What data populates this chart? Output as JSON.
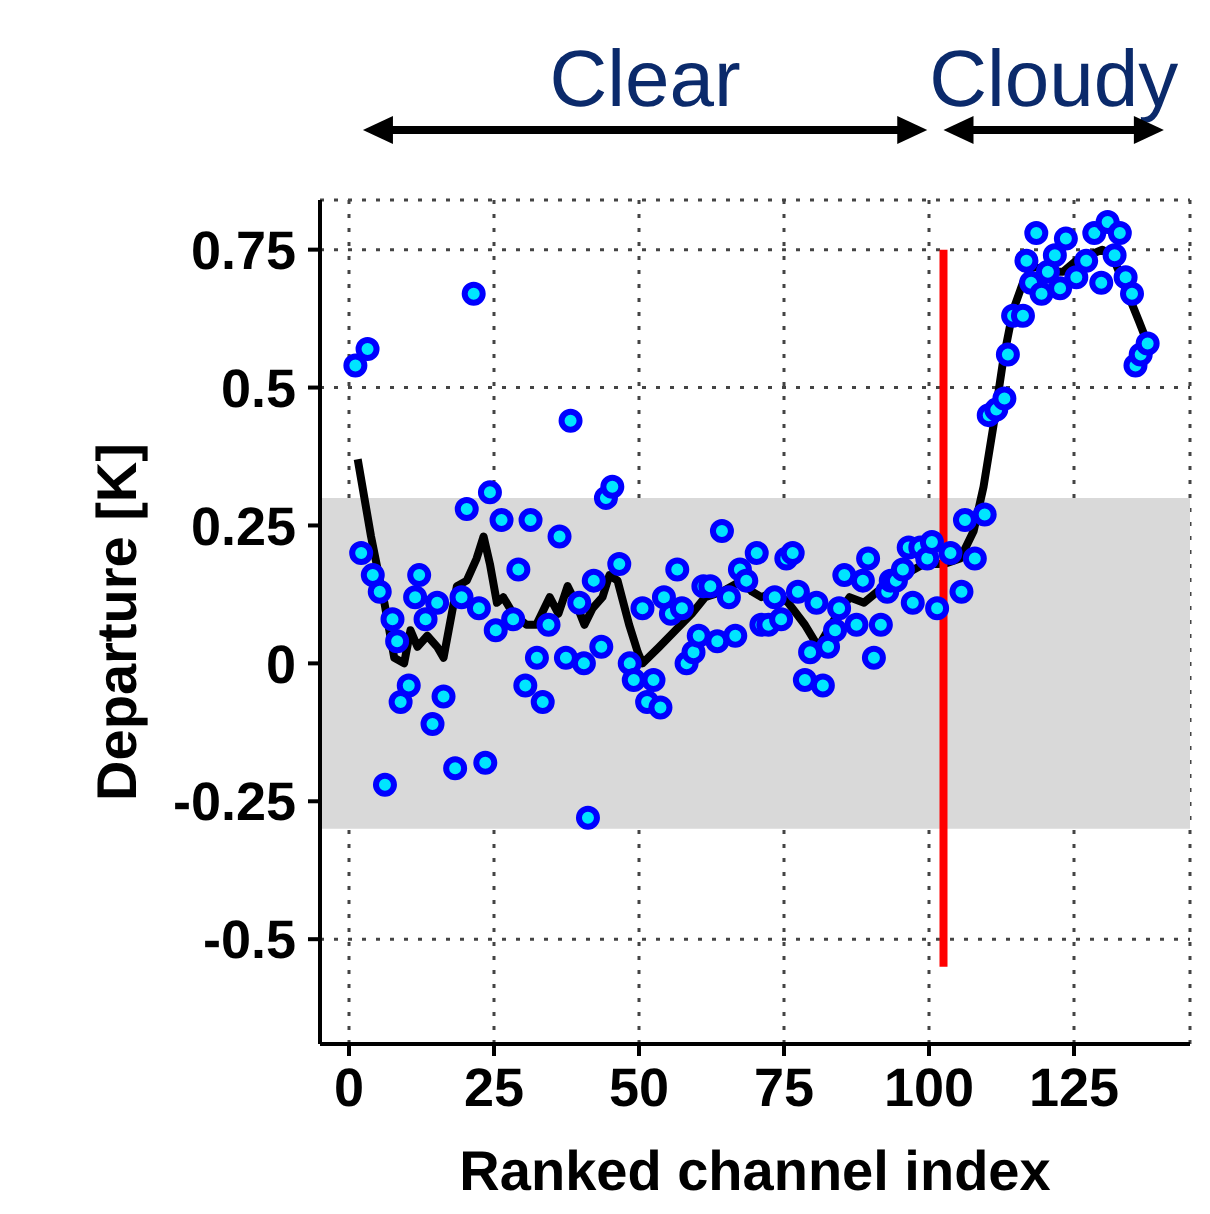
{
  "chart_data": {
    "type": "scatter",
    "xlabel": "Ranked channel index",
    "ylabel": "Departure [K]",
    "annotations": [
      "Clear",
      "Cloudy"
    ],
    "xlim": [
      -5,
      145
    ],
    "xticks": [
      0,
      25,
      50,
      75,
      100,
      125
    ],
    "ylim": [
      -0.69,
      0.84
    ],
    "yticks": [
      -0.5,
      -0.25,
      0,
      0.25,
      0.5,
      0.75
    ],
    "grid": true,
    "bands": [
      {
        "axis": "y",
        "from": -0.3,
        "to": 0.3,
        "color": "#d9d9d9"
      }
    ],
    "series": [
      {
        "marker": "circle",
        "color": "#0000ff",
        "x": [
          1.1,
          2.1,
          3.2,
          4.1,
          5.3,
          6.2,
          7.5,
          8.3,
          8.9,
          10.3,
          11.4,
          12.1,
          13.2,
          14.4,
          15.2,
          16.3,
          18.3,
          19.4,
          20.3,
          21.5,
          22.4,
          23.5,
          24.3,
          25.3,
          26.3,
          28.3,
          29.2,
          30.4,
          31.3,
          32.4,
          33.4,
          34.4,
          36.3,
          37.4,
          38.2,
          39.7,
          40.5,
          41.2,
          42.2,
          43.5,
          44.3,
          45.4,
          46.6,
          48.4,
          49.1,
          50.6,
          51.4,
          52.5,
          53.7,
          54.3,
          55.5,
          56.6,
          57.4,
          58.2,
          59.4,
          60.3,
          61.1,
          62.3,
          63.5,
          64.3,
          65.5,
          66.6,
          67.4,
          68.5,
          70.3,
          71.1,
          72.3,
          73.4,
          74.5,
          75.4,
          76.5,
          77.4,
          78.6,
          79.5,
          80.6,
          81.7,
          82.6,
          83.8,
          84.5,
          85.4,
          87.5,
          88.6,
          89.5,
          90.5,
          91.7,
          92.8,
          93.4,
          94.3,
          95.5,
          96.5,
          97.2,
          98.5,
          99.7,
          100.5,
          101.4,
          103.7,
          105.6,
          106.2,
          107.9,
          109.6,
          110.3,
          111.6,
          113.0,
          113.6,
          114.5,
          116.2,
          116.8,
          117.6,
          118.5,
          119.4,
          120.5,
          121.7,
          122.6,
          123.6,
          125.4,
          127.1,
          128.5,
          129.7,
          130.8,
          132.0,
          132.9,
          133.9,
          135.0,
          135.6,
          136.5,
          137.7
        ],
        "values": [
          0.54,
          0.2,
          0.57,
          0.16,
          0.13,
          -0.22,
          0.08,
          0.04,
          -0.07,
          -0.04,
          0.12,
          0.16,
          0.08,
          -0.11,
          0.11,
          -0.06,
          -0.19,
          0.12,
          0.28,
          0.67,
          0.1,
          -0.18,
          0.31,
          0.06,
          0.26,
          0.08,
          0.17,
          -0.04,
          0.26,
          0.01,
          -0.07,
          0.07,
          0.23,
          0.01,
          0.44,
          0.11,
          0.0,
          -0.28,
          0.15,
          0.03,
          0.3,
          0.32,
          0.18,
          0.0,
          -0.03,
          0.1,
          -0.07,
          -0.03,
          -0.08,
          0.12,
          0.09,
          0.17,
          0.1,
          0.0,
          0.02,
          0.05,
          0.14,
          0.14,
          0.04,
          0.24,
          0.12,
          0.05,
          0.17,
          0.15,
          0.2,
          0.07,
          0.07,
          0.12,
          0.08,
          0.19,
          0.2,
          0.13,
          -0.03,
          0.02,
          0.11,
          -0.04,
          0.03,
          0.06,
          0.1,
          0.16,
          0.07,
          0.15,
          0.19,
          0.01,
          0.07,
          0.13,
          0.15,
          0.15,
          0.17,
          0.21,
          0.11,
          0.21,
          0.19,
          0.22,
          0.1,
          0.2,
          0.13,
          0.26,
          0.19,
          0.27,
          0.45,
          0.46,
          0.48,
          0.56,
          0.63,
          0.63,
          0.73,
          0.69,
          0.78,
          0.67,
          0.71,
          0.74,
          0.68,
          0.77,
          0.7,
          0.73,
          0.78,
          0.69,
          0.8,
          0.74,
          0.78,
          0.7,
          0.67,
          0.54,
          0.56,
          0.58
        ]
      },
      {
        "type": "line",
        "marker": "none",
        "color": "#000000",
        "x": [
          1.5,
          3.8,
          6.1,
          7.8,
          9.5,
          10.6,
          11.8,
          13.5,
          15.2,
          16.3,
          18.6,
          20.3,
          22.0,
          23.2,
          24.3,
          25.5,
          26.6,
          28.3,
          30.6,
          32.3,
          34.6,
          36.1,
          37.7,
          39.1,
          40.6,
          42.0,
          43.7,
          44.9,
          46.3,
          48.3,
          49.8,
          50.6,
          53.5,
          56.3,
          59.1,
          61.4,
          64.3,
          67.7,
          69.5,
          71.1,
          73.4,
          75.7,
          78.6,
          80.9,
          83.7,
          86.3,
          88.8,
          91.1,
          93.9,
          97.4,
          99.1,
          102.5,
          105.4,
          107.7,
          109.4,
          111.1,
          112.8,
          114.5,
          116.2,
          117.9,
          120.8,
          123.1,
          125.4,
          127.6,
          129.9,
          131.6,
          133.9,
          136.2,
          137.7
        ],
        "values": [
          0.37,
          0.23,
          0.11,
          0.01,
          0.0,
          0.06,
          0.03,
          0.05,
          0.03,
          0.01,
          0.14,
          0.15,
          0.19,
          0.23,
          0.18,
          0.11,
          0.12,
          0.09,
          0.07,
          0.07,
          0.12,
          0.09,
          0.14,
          0.11,
          0.07,
          0.1,
          0.12,
          0.16,
          0.15,
          0.07,
          0.02,
          0.0,
          0.03,
          0.06,
          0.09,
          0.12,
          0.13,
          0.15,
          0.13,
          0.12,
          0.13,
          0.11,
          0.07,
          0.03,
          0.08,
          0.12,
          0.11,
          0.13,
          0.15,
          0.17,
          0.18,
          0.18,
          0.19,
          0.24,
          0.32,
          0.43,
          0.55,
          0.64,
          0.69,
          0.72,
          0.71,
          0.71,
          0.73,
          0.74,
          0.75,
          0.74,
          0.68,
          0.62,
          0.58
        ]
      },
      {
        "type": "line",
        "marker": "none",
        "color": "#ff0000",
        "x": [
          102.5,
          102.5
        ],
        "values": [
          0.75,
          -0.55
        ]
      }
    ]
  }
}
